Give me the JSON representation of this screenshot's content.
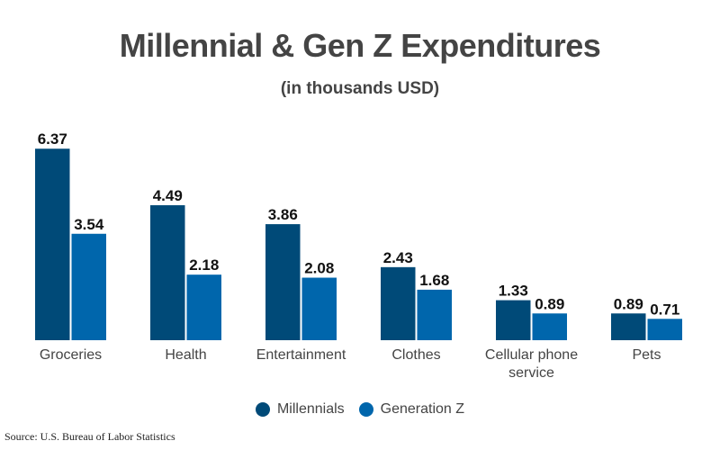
{
  "chart_data": {
    "type": "bar",
    "title": "Millennial & Gen Z Expenditures",
    "subtitle": "(in thousands USD)",
    "xlabel": "",
    "ylabel": "",
    "ylim": [
      0,
      6.5
    ],
    "grid": false,
    "legend_position": "bottom",
    "categories": [
      "Groceries",
      "Health",
      "Entertainment",
      "Clothes",
      "Cellular phone service",
      "Pets"
    ],
    "category_lines": [
      [
        "Groceries"
      ],
      [
        "Health"
      ],
      [
        "Entertainment"
      ],
      [
        "Clothes"
      ],
      [
        "Cellular phone",
        "service"
      ],
      [
        "Pets"
      ]
    ],
    "series": [
      {
        "name": "Millennials",
        "color": "#004a78",
        "values": [
          6.37,
          4.49,
          3.86,
          2.43,
          1.33,
          0.89
        ],
        "labels": [
          "6.37",
          "4.49",
          "3.86",
          "2.43",
          "1.33",
          "0.89"
        ]
      },
      {
        "name": "Generation Z",
        "color": "#0066ac",
        "values": [
          3.54,
          2.18,
          2.08,
          1.68,
          0.89,
          0.71
        ],
        "labels": [
          "3.54",
          "2.18",
          "2.08",
          "1.68",
          "0.89",
          "0.71"
        ]
      }
    ],
    "source": "Source: U.S. Bureau of Labor Statistics"
  }
}
